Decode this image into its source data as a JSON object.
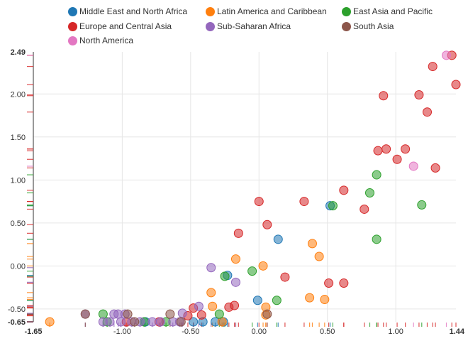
{
  "chart_data": {
    "type": "scatter",
    "title": "",
    "xlabel": "",
    "ylabel": "",
    "xlim": [
      -1.65,
      1.44
    ],
    "ylim": [
      -0.65,
      2.49
    ],
    "x_ticks": [
      "-1.65",
      "-1.00",
      "-0.50",
      "0.00",
      "0.50",
      "1.00",
      "1.44"
    ],
    "y_ticks": [
      "2.49",
      "2.00",
      "1.50",
      "1.00",
      "0.50",
      "0.00",
      "-0.50",
      "-0.65"
    ],
    "x_tick_values": [
      -1.65,
      -1.0,
      -0.5,
      0.0,
      0.5,
      1.0,
      1.44
    ],
    "y_tick_values": [
      2.49,
      2.0,
      1.5,
      1.0,
      0.5,
      0.0,
      -0.5,
      -0.65
    ],
    "bold_ticks": [
      "-1.65",
      "1.44",
      "2.49",
      "-0.65"
    ],
    "grid": true,
    "rug_plot": true,
    "legend_position": "top",
    "series": [
      {
        "name": "Middle East and North Africa",
        "color": "#1f77b4",
        "points": [
          [
            0.52,
            0.7
          ],
          [
            0.14,
            0.31
          ],
          [
            -0.23,
            -0.11
          ],
          [
            -0.01,
            -0.4
          ],
          [
            -0.83,
            -0.65
          ],
          [
            -0.48,
            -0.65
          ],
          [
            -0.41,
            -0.65
          ],
          [
            -0.32,
            -0.65
          ],
          [
            -0.26,
            -0.65
          ]
        ]
      },
      {
        "name": "Latin America and Caribbean",
        "color": "#ff7f0e",
        "points": [
          [
            -1.53,
            -0.65
          ],
          [
            -0.17,
            0.08
          ],
          [
            0.03,
            0.0
          ],
          [
            0.39,
            0.26
          ],
          [
            0.44,
            0.11
          ],
          [
            -0.35,
            -0.31
          ],
          [
            -0.34,
            -0.47
          ],
          [
            0.05,
            -0.48
          ],
          [
            0.37,
            -0.37
          ],
          [
            0.48,
            -0.39
          ],
          [
            0.05,
            -0.57
          ],
          [
            -0.27,
            -0.65
          ]
        ]
      },
      {
        "name": "East Asia and Pacific",
        "color": "#2ca02c",
        "points": [
          [
            0.54,
            0.7
          ],
          [
            0.86,
            1.06
          ],
          [
            0.81,
            0.85
          ],
          [
            1.19,
            0.71
          ],
          [
            0.86,
            0.31
          ],
          [
            -0.05,
            -0.06
          ],
          [
            -0.25,
            -0.12
          ],
          [
            0.13,
            -0.4
          ],
          [
            -0.29,
            -0.56
          ],
          [
            -1.14,
            -0.56
          ],
          [
            -1.11,
            -0.65
          ],
          [
            -0.68,
            -0.65
          ],
          [
            -0.84,
            -0.65
          ]
        ]
      },
      {
        "name": "Europe and Central Asia",
        "color": "#d62728",
        "points": [
          [
            1.41,
            2.45
          ],
          [
            1.27,
            2.32
          ],
          [
            1.44,
            2.11
          ],
          [
            1.17,
            1.99
          ],
          [
            0.91,
            1.98
          ],
          [
            1.23,
            1.79
          ],
          [
            0.87,
            1.34
          ],
          [
            0.93,
            1.36
          ],
          [
            1.07,
            1.36
          ],
          [
            1.01,
            1.24
          ],
          [
            1.29,
            1.14
          ],
          [
            0.62,
            0.88
          ],
          [
            0.33,
            0.75
          ],
          [
            0.0,
            0.75
          ],
          [
            0.77,
            0.66
          ],
          [
            0.06,
            0.48
          ],
          [
            -0.15,
            0.38
          ],
          [
            0.19,
            -0.13
          ],
          [
            0.51,
            -0.2
          ],
          [
            0.62,
            -0.2
          ],
          [
            -0.18,
            -0.46
          ],
          [
            -0.22,
            -0.48
          ],
          [
            -0.48,
            -0.49
          ],
          [
            -0.42,
            -0.57
          ],
          [
            -0.52,
            -0.58
          ],
          [
            -0.73,
            -0.65
          ],
          [
            -0.97,
            -0.65
          ]
        ]
      },
      {
        "name": "Sub-Saharan Africa",
        "color": "#9467bd",
        "points": [
          [
            -0.35,
            -0.02
          ],
          [
            -0.17,
            -0.19
          ],
          [
            -0.44,
            -0.47
          ],
          [
            -0.56,
            -0.55
          ],
          [
            -1.27,
            -0.56
          ],
          [
            -1.03,
            -0.56
          ],
          [
            -1.06,
            -0.56
          ],
          [
            -0.98,
            -0.56
          ],
          [
            -1.14,
            -0.65
          ],
          [
            -1.09,
            -0.65
          ],
          [
            -1.01,
            -0.65
          ],
          [
            -0.93,
            -0.65
          ],
          [
            -0.87,
            -0.65
          ],
          [
            -0.78,
            -0.65
          ],
          [
            -0.72,
            -0.65
          ],
          [
            -0.63,
            -0.65
          ],
          [
            -0.58,
            -0.65
          ]
        ]
      },
      {
        "name": "South Asia",
        "color": "#8c564b",
        "points": [
          [
            -1.27,
            -0.56
          ],
          [
            -0.96,
            -0.56
          ],
          [
            -0.65,
            -0.56
          ],
          [
            0.06,
            -0.56
          ],
          [
            -0.91,
            -0.65
          ],
          [
            -0.57,
            -0.65
          ]
        ]
      },
      {
        "name": "North America",
        "color": "#e377c2",
        "points": [
          [
            1.37,
            2.45
          ],
          [
            1.13,
            1.16
          ]
        ]
      }
    ]
  }
}
